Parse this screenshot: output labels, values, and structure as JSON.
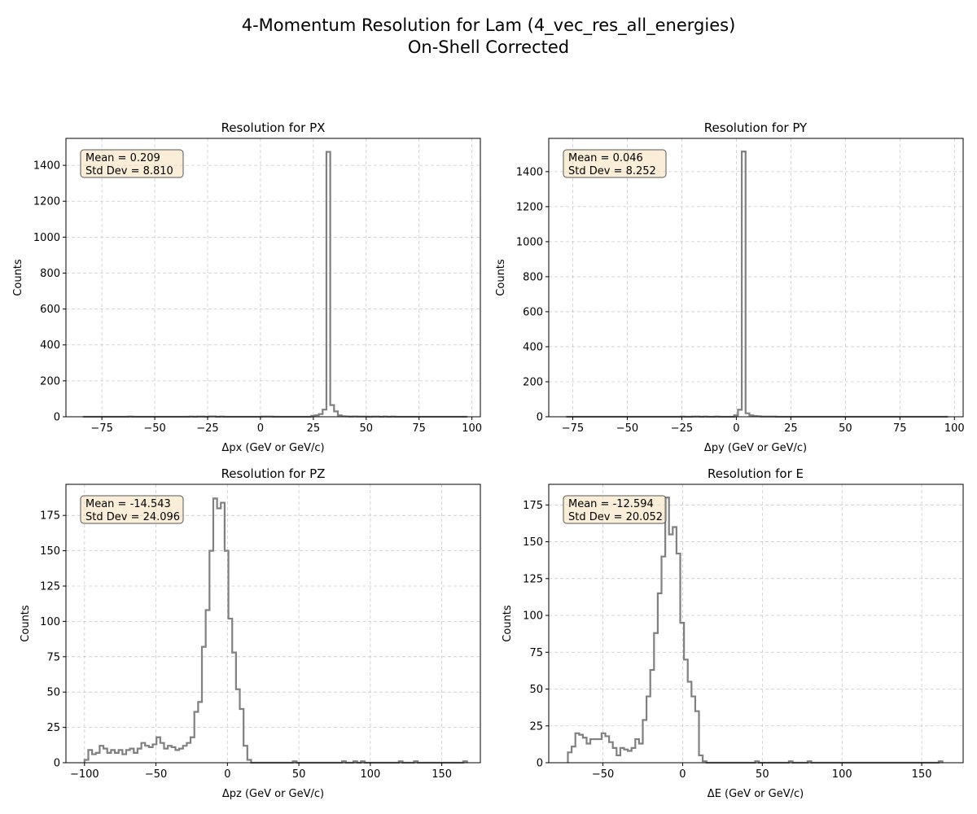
{
  "figure": {
    "title_line1": "4-Momentum Resolution for Lam (4_vec_res_all_energies)",
    "title_line2": "On-Shell Corrected"
  },
  "chart_data": [
    {
      "type": "histogram",
      "title": "Resolution for PX",
      "xlabel": "Δpx (GeV or GeV/c)",
      "ylabel": "Counts",
      "xlim": [
        -92,
        104
      ],
      "ylim": [
        0,
        1550
      ],
      "xticks": [
        -75,
        -50,
        -25,
        0,
        25,
        50,
        75,
        100
      ],
      "yticks": [
        0,
        200,
        400,
        600,
        800,
        1000,
        1200,
        1400
      ],
      "grid": true,
      "stats": {
        "mean": "Mean = 0.209",
        "std": "Std Dev = 8.810"
      },
      "bins": {
        "start": -84,
        "width": 1.8,
        "counts": [
          0,
          0,
          0,
          0,
          0,
          0,
          0,
          0,
          0,
          0,
          0,
          0,
          1,
          0,
          0,
          0,
          0,
          0,
          0,
          0,
          0,
          0,
          0,
          0,
          0,
          0,
          0,
          0,
          1,
          0,
          1,
          1,
          0,
          2,
          2,
          0,
          1,
          0,
          0,
          0,
          0,
          0,
          0,
          0,
          0,
          0,
          0,
          1,
          1,
          1,
          0,
          0,
          0,
          0,
          0,
          0,
          0,
          0,
          0,
          0,
          5,
          8,
          15,
          40,
          1475,
          65,
          30,
          8,
          3,
          2,
          1,
          2,
          1,
          1,
          1,
          0,
          1,
          1,
          0,
          1,
          0,
          1,
          0,
          0,
          0,
          0,
          0,
          0,
          0,
          0,
          0,
          0,
          0,
          0,
          0,
          0,
          0,
          0,
          0,
          0,
          0
        ]
      }
    },
    {
      "type": "histogram",
      "title": "Resolution for PY",
      "xlabel": "Δpy (GeV or GeV/c)",
      "ylabel": "Counts",
      "xlim": [
        -86,
        104
      ],
      "ylim": [
        0,
        1590
      ],
      "xticks": [
        -75,
        -50,
        -25,
        0,
        25,
        50,
        75,
        100
      ],
      "yticks": [
        0,
        200,
        400,
        600,
        800,
        1000,
        1200,
        1400
      ],
      "grid": true,
      "stats": {
        "mean": "Mean = 0.046",
        "std": "Std Dev = 8.252"
      },
      "bins": {
        "start": -78,
        "width": 1.75,
        "counts": [
          0,
          0,
          0,
          0,
          0,
          0,
          0,
          0,
          0,
          0,
          0,
          0,
          0,
          0,
          0,
          0,
          0,
          0,
          0,
          0,
          0,
          0,
          0,
          0,
          0,
          0,
          0,
          0,
          0,
          0,
          1,
          0,
          0,
          1,
          1,
          0,
          1,
          0,
          0,
          1,
          0,
          0,
          0,
          0,
          8,
          40,
          1515,
          20,
          8,
          5,
          3,
          1,
          1,
          1,
          1,
          0,
          0,
          0,
          0,
          0,
          0,
          0,
          0,
          0,
          0,
          0,
          0,
          0,
          0,
          0,
          0,
          0,
          0,
          0,
          0,
          0,
          0,
          0,
          0,
          0,
          0,
          0,
          0,
          0,
          0,
          0,
          0,
          0,
          0,
          0,
          0,
          0,
          0,
          0,
          0,
          0,
          0,
          0,
          0,
          0
        ]
      }
    },
    {
      "type": "histogram",
      "title": "Resolution for PZ",
      "xlabel": "Δpz (GeV or GeV/c)",
      "ylabel": "Counts",
      "xlim": [
        -113,
        177
      ],
      "ylim": [
        0,
        197
      ],
      "xticks": [
        -100,
        -50,
        0,
        50,
        100,
        150
      ],
      "yticks": [
        0,
        25,
        50,
        75,
        100,
        125,
        150,
        175
      ],
      "grid": true,
      "stats": {
        "mean": "Mean = -14.543",
        "std": "Std Dev = 24.096"
      },
      "bins": {
        "start": -100,
        "width": 2.65,
        "counts": [
          2,
          9,
          6,
          7,
          12,
          10,
          7,
          9,
          7,
          9,
          6,
          9,
          10,
          7,
          10,
          14,
          12,
          11,
          13,
          18,
          14,
          10,
          12,
          11,
          9,
          10,
          12,
          14,
          18,
          36,
          43,
          82,
          108,
          150,
          187,
          180,
          184,
          150,
          102,
          78,
          52,
          38,
          12,
          2,
          0,
          0,
          0,
          0,
          0,
          0,
          0,
          0,
          0,
          0,
          0,
          1,
          0,
          0,
          0,
          0,
          0,
          0,
          0,
          0,
          0,
          0,
          0,
          0,
          1,
          0,
          0,
          1,
          0,
          1,
          0,
          0,
          0,
          0,
          0,
          0,
          0,
          0,
          0,
          1,
          0,
          0,
          0,
          1,
          0,
          0,
          0,
          0,
          0,
          0,
          0,
          0,
          0,
          0,
          0,
          0,
          1
        ]
      }
    },
    {
      "type": "histogram",
      "title": "Resolution for E",
      "xlabel": "ΔE (GeV or GeV/c)",
      "ylabel": "Counts",
      "xlim": [
        -84,
        176
      ],
      "ylim": [
        0,
        189
      ],
      "xticks": [
        -50,
        0,
        50,
        100,
        150
      ],
      "yticks": [
        0,
        25,
        50,
        75,
        100,
        125,
        150,
        175
      ],
      "grid": true,
      "stats": {
        "mean": "Mean = -12.594",
        "std": "Std Dev = 20.052"
      },
      "bins": {
        "start": -72,
        "width": 2.35,
        "counts": [
          7,
          11,
          20,
          19,
          17,
          13,
          16,
          16,
          16,
          20,
          18,
          14,
          10,
          5,
          10,
          9,
          8,
          10,
          16,
          13,
          29,
          45,
          63,
          88,
          115,
          140,
          180,
          155,
          160,
          142,
          95,
          70,
          55,
          45,
          35,
          5,
          1,
          0,
          0,
          0,
          0,
          0,
          0,
          0,
          0,
          0,
          0,
          0,
          0,
          0,
          1,
          0,
          0,
          0,
          0,
          0,
          0,
          0,
          0,
          1,
          0,
          0,
          0,
          0,
          1,
          0,
          0,
          0,
          0,
          0,
          0,
          0,
          0,
          0,
          0,
          0,
          0,
          0,
          0,
          0,
          0,
          0,
          0,
          0,
          0,
          0,
          0,
          0,
          0,
          0,
          0,
          0,
          0,
          0,
          0,
          0,
          0,
          0,
          0,
          1
        ]
      }
    }
  ]
}
